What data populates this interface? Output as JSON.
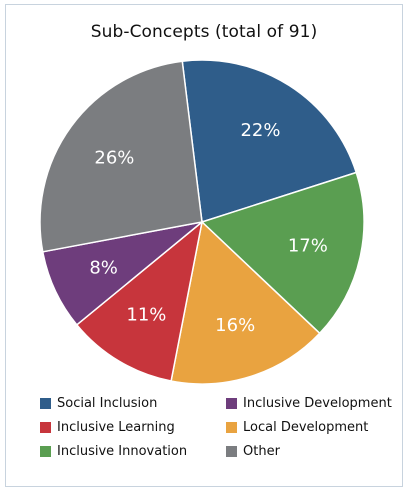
{
  "chart_data": {
    "type": "pie",
    "title": "Sub-Concepts (total of 91)",
    "slices": [
      {
        "label": "Social Inclusion",
        "value": 22,
        "display": "22%",
        "color": "#2f5d8a"
      },
      {
        "label": "Inclusive Innovation",
        "value": 17,
        "display": "17%",
        "color": "#5a9e51"
      },
      {
        "label": "Local Development",
        "value": 16,
        "display": "16%",
        "color": "#e9a340"
      },
      {
        "label": "Inclusive Learning",
        "value": 11,
        "display": "11%",
        "color": "#c7353c"
      },
      {
        "label": "Inclusive Development",
        "value": 8,
        "display": "8%",
        "color": "#6e3d7c"
      },
      {
        "label": "Other",
        "value": 26,
        "display": "26%",
        "color": "#7b7d80"
      }
    ],
    "legend": {
      "placement": "bottom",
      "columns": [
        [
          "Social Inclusion",
          "Inclusive Learning",
          "Inclusive Innovation"
        ],
        [
          "Inclusive Development",
          "Local Development",
          "Other"
        ]
      ]
    }
  }
}
